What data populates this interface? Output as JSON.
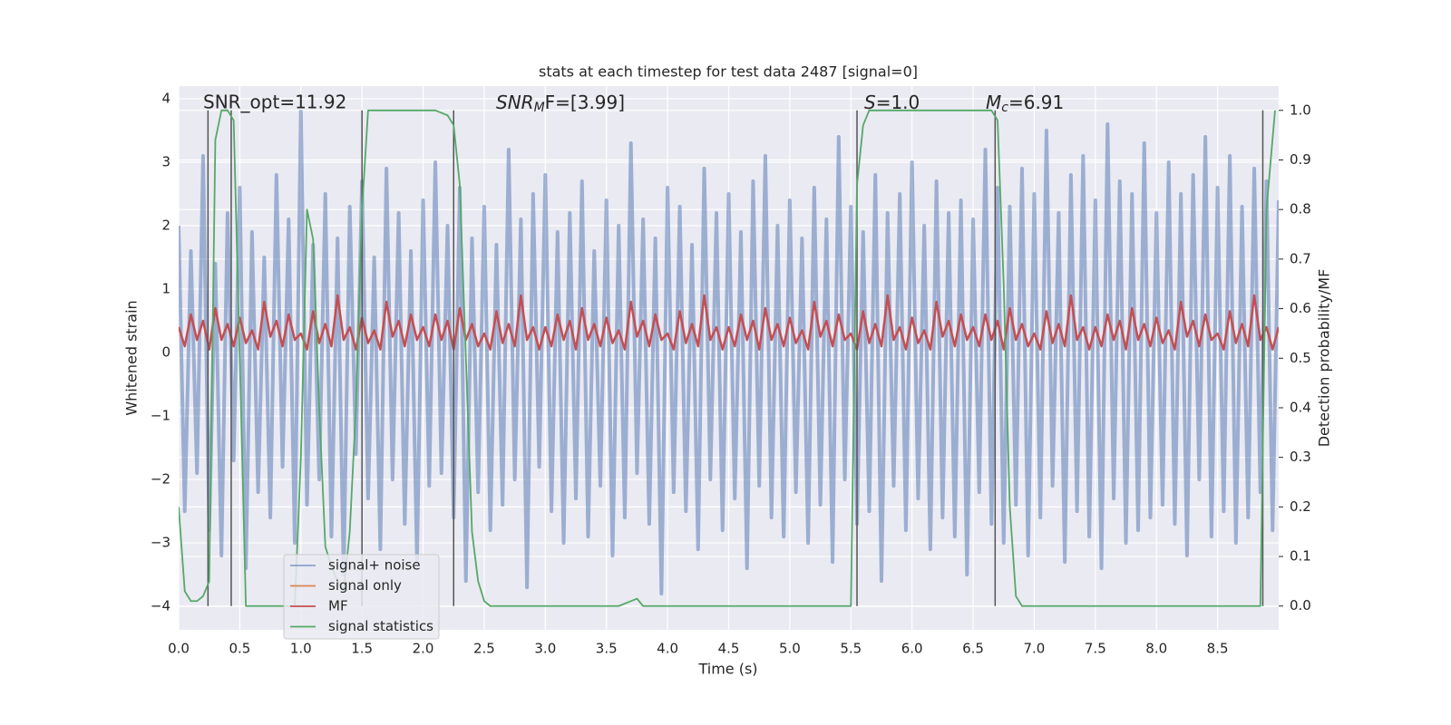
{
  "chart_data": {
    "type": "line",
    "title": "stats at each timestep for test data 2487 [signal=0]",
    "xlabel": "Time (s)",
    "ylabel": "Whitened strain",
    "y2label": "Detection probability/MF",
    "xlim": [
      0,
      9.0
    ],
    "xticks": [
      {
        "value": 0,
        "label": "0.0"
      },
      {
        "value": 0.5,
        "label": "0.5"
      },
      {
        "value": 1,
        "label": "1.0"
      },
      {
        "value": 1.5,
        "label": "1.5"
      },
      {
        "value": 2,
        "label": "2.0"
      },
      {
        "value": 2.5,
        "label": "2.5"
      },
      {
        "value": 3,
        "label": "3.0"
      },
      {
        "value": 3.5,
        "label": "3.5"
      },
      {
        "value": 4,
        "label": "4.0"
      },
      {
        "value": 4.5,
        "label": "4.5"
      },
      {
        "value": 5,
        "label": "5.0"
      },
      {
        "value": 5.5,
        "label": "5.5"
      },
      {
        "value": 6,
        "label": "6.0"
      },
      {
        "value": 6.5,
        "label": "6.5"
      },
      {
        "value": 7,
        "label": "7.0"
      },
      {
        "value": 7.5,
        "label": "7.5"
      },
      {
        "value": 8,
        "label": "8.0"
      },
      {
        "value": 8.5,
        "label": "8.5"
      }
    ],
    "ylim": [
      -4.37,
      4.2
    ],
    "yticks": [
      {
        "value": -4,
        "label": "−4"
      },
      {
        "value": -3,
        "label": "−3"
      },
      {
        "value": -2,
        "label": "−2"
      },
      {
        "value": -1,
        "label": "−1"
      },
      0,
      1,
      2,
      3,
      4
    ],
    "y2lim": [
      -0.048,
      1.049
    ],
    "y2ticks": [
      {
        "value": 0,
        "label": "0.0"
      },
      {
        "value": 0.1,
        "label": "0.1"
      },
      {
        "value": 0.2,
        "label": "0.2"
      },
      {
        "value": 0.3,
        "label": "0.3"
      },
      {
        "value": 0.4,
        "label": "0.4"
      },
      {
        "value": 0.5,
        "label": "0.5"
      },
      {
        "value": 0.6,
        "label": "0.6"
      },
      {
        "value": 0.7,
        "label": "0.7"
      },
      {
        "value": 0.8,
        "label": "0.8"
      },
      {
        "value": 0.9,
        "label": "0.9"
      },
      {
        "value": 1,
        "label": "1.0"
      }
    ],
    "grid": true,
    "annotations": [
      {
        "text": "SNR_opt=11.92"
      },
      {
        "base": "SNR",
        "sub": "M",
        "rest": "F=[3.99]"
      },
      {
        "base": "S",
        "rest": "=1.0"
      },
      {
        "base": "M",
        "sub": "c",
        "rest": "=6.91"
      }
    ],
    "vlines": [
      0.24,
      0.43,
      1.5,
      2.25,
      5.55,
      6.68,
      8.87
    ],
    "vlines_range": [
      0,
      1
    ],
    "vlines_color": "#555555",
    "series": [
      {
        "name": "signal+ noise",
        "color": "#4c72b0",
        "axis": "y",
        "x": [
          0,
          0.05,
          0.1,
          0.15,
          0.2,
          0.25,
          0.3,
          0.35,
          0.4,
          0.45,
          0.5,
          0.55,
          0.6,
          0.65,
          0.7,
          0.75,
          0.8,
          0.85,
          0.9,
          0.95,
          1,
          1.05,
          1.1,
          1.15,
          1.2,
          1.25,
          1.3,
          1.35,
          1.4,
          1.45,
          1.5,
          1.55,
          1.6,
          1.65,
          1.7,
          1.75,
          1.8,
          1.85,
          1.9,
          1.95,
          2,
          2.05,
          2.1,
          2.15,
          2.2,
          2.25,
          2.3,
          2.35,
          2.4,
          2.45,
          2.5,
          2.55,
          2.6,
          2.65,
          2.7,
          2.75,
          2.8,
          2.85,
          2.9,
          2.95,
          3,
          3.05,
          3.1,
          3.15,
          3.2,
          3.25,
          3.3,
          3.35,
          3.4,
          3.45,
          3.5,
          3.55,
          3.6,
          3.65,
          3.7,
          3.75,
          3.8,
          3.85,
          3.9,
          3.95,
          4,
          4.05,
          4.1,
          4.15,
          4.2,
          4.25,
          4.3,
          4.35,
          4.4,
          4.45,
          4.5,
          4.55,
          4.6,
          4.65,
          4.7,
          4.75,
          4.8,
          4.85,
          4.9,
          4.95,
          5,
          5.05,
          5.1,
          5.15,
          5.2,
          5.25,
          5.3,
          5.35,
          5.4,
          5.45,
          5.5,
          5.55,
          5.6,
          5.65,
          5.7,
          5.75,
          5.8,
          5.85,
          5.9,
          5.95,
          6,
          6.05,
          6.1,
          6.15,
          6.2,
          6.25,
          6.3,
          6.35,
          6.4,
          6.45,
          6.5,
          6.55,
          6.6,
          6.65,
          6.7,
          6.75,
          6.8,
          6.85,
          6.9,
          6.95,
          7,
          7.05,
          7.1,
          7.15,
          7.2,
          7.25,
          7.3,
          7.35,
          7.4,
          7.45,
          7.5,
          7.55,
          7.6,
          7.65,
          7.7,
          7.75,
          7.8,
          7.85,
          7.9,
          7.95,
          8,
          8.05,
          8.1,
          8.15,
          8.2,
          8.25,
          8.3,
          8.35,
          8.4,
          8.45,
          8.5,
          8.55,
          8.6,
          8.65,
          8.7,
          8.75,
          8.8,
          8.85,
          8.9,
          8.95,
          9
        ],
        "values": [
          2.0,
          -2.5,
          1.6,
          -1.9,
          3.1,
          -2.8,
          1.4,
          -3.2,
          2.2,
          -1.7,
          2.6,
          -3.4,
          1.9,
          -2.2,
          1.5,
          -2.6,
          2.8,
          -1.8,
          2.1,
          -3.0,
          3.8,
          -2.4,
          1.7,
          -2.0,
          2.5,
          -2.9,
          1.8,
          -3.5,
          2.3,
          -1.6,
          2.7,
          -2.3,
          1.5,
          -3.1,
          2.9,
          -2.0,
          2.2,
          -2.7,
          1.6,
          -3.3,
          2.4,
          -2.1,
          3.0,
          -1.9,
          2.0,
          -2.6,
          2.6,
          -3.6,
          1.8,
          -2.2,
          2.3,
          -2.8,
          1.7,
          -2.4,
          3.2,
          -2.0,
          2.1,
          -3.7,
          2.5,
          -1.8,
          2.8,
          -2.5,
          1.9,
          -3.0,
          2.2,
          -2.3,
          2.7,
          -2.9,
          1.6,
          -2.1,
          2.4,
          -3.2,
          2.0,
          -2.6,
          3.3,
          -1.9,
          2.1,
          -2.7,
          1.8,
          -3.8,
          2.6,
          -2.2,
          2.3,
          -2.5,
          1.7,
          -3.1,
          2.9,
          -2.0,
          2.2,
          -2.8,
          2.5,
          -2.3,
          1.9,
          -3.4,
          2.7,
          -2.1,
          3.1,
          -2.6,
          2.0,
          -2.9,
          2.4,
          -2.2,
          1.8,
          -3.0,
          2.6,
          -2.4,
          2.1,
          -3.3,
          3.4,
          -2.0,
          2.3,
          -2.7,
          1.9,
          -2.5,
          2.8,
          -3.6,
          2.2,
          -2.1,
          2.5,
          -2.8,
          3.0,
          -2.3,
          2.0,
          -3.1,
          2.7,
          -2.6,
          2.2,
          -2.9,
          2.4,
          -3.5,
          2.1,
          -2.2,
          3.2,
          -2.7,
          2.6,
          -3.0,
          2.3,
          -2.4,
          2.9,
          -3.2,
          2.5,
          -2.6,
          3.5,
          -2.1,
          2.2,
          -3.3,
          2.8,
          -2.5,
          3.1,
          -2.9,
          2.4,
          -3.4,
          3.6,
          -2.3,
          2.7,
          -3.0,
          2.5,
          -2.8,
          3.3,
          -2.6,
          2.2,
          -2.4,
          3.0,
          -2.7,
          2.5,
          -3.2,
          2.8,
          -2.0,
          3.4,
          -2.9,
          2.6,
          -2.5,
          3.1,
          -3.0,
          2.3,
          -2.6,
          2.9,
          -2.2,
          2.7,
          -2.8,
          2.4
        ]
      },
      {
        "name": "signal only",
        "color": "#dd8452",
        "axis": "y",
        "x": [],
        "values": []
      },
      {
        "name": "MF",
        "color": "#c44e52",
        "axis": "y",
        "x": [
          0,
          0.05,
          0.1,
          0.15,
          0.2,
          0.25,
          0.3,
          0.35,
          0.4,
          0.45,
          0.5,
          0.55,
          0.6,
          0.65,
          0.7,
          0.75,
          0.8,
          0.85,
          0.9,
          0.95,
          1,
          1.05,
          1.1,
          1.15,
          1.2,
          1.25,
          1.3,
          1.35,
          1.4,
          1.45,
          1.5,
          1.55,
          1.6,
          1.65,
          1.7,
          1.75,
          1.8,
          1.85,
          1.9,
          1.95,
          2,
          2.05,
          2.1,
          2.15,
          2.2,
          2.25,
          2.3,
          2.35,
          2.4,
          2.45,
          2.5,
          2.55,
          2.6,
          2.65,
          2.7,
          2.75,
          2.8,
          2.85,
          2.9,
          2.95,
          3,
          3.05,
          3.1,
          3.15,
          3.2,
          3.25,
          3.3,
          3.35,
          3.4,
          3.45,
          3.5,
          3.55,
          3.6,
          3.65,
          3.7,
          3.75,
          3.8,
          3.85,
          3.9,
          3.95,
          4,
          4.05,
          4.1,
          4.15,
          4.2,
          4.25,
          4.3,
          4.35,
          4.4,
          4.45,
          4.5,
          4.55,
          4.6,
          4.65,
          4.7,
          4.75,
          4.8,
          4.85,
          4.9,
          4.95,
          5,
          5.05,
          5.1,
          5.15,
          5.2,
          5.25,
          5.3,
          5.35,
          5.4,
          5.45,
          5.5,
          5.55,
          5.6,
          5.65,
          5.7,
          5.75,
          5.8,
          5.85,
          5.9,
          5.95,
          6,
          6.05,
          6.1,
          6.15,
          6.2,
          6.25,
          6.3,
          6.35,
          6.4,
          6.45,
          6.5,
          6.55,
          6.6,
          6.65,
          6.7,
          6.75,
          6.8,
          6.85,
          6.9,
          6.95,
          7,
          7.05,
          7.1,
          7.15,
          7.2,
          7.25,
          7.3,
          7.35,
          7.4,
          7.45,
          7.5,
          7.55,
          7.6,
          7.65,
          7.7,
          7.75,
          7.8,
          7.85,
          7.9,
          7.95,
          8,
          8.05,
          8.1,
          8.15,
          8.2,
          8.25,
          8.3,
          8.35,
          8.4,
          8.45,
          8.5,
          8.55,
          8.6,
          8.65,
          8.7,
          8.75,
          8.8,
          8.85,
          8.9,
          8.95,
          9
        ],
        "values": [
          0.4,
          0.1,
          0.6,
          0.2,
          0.5,
          0.05,
          0.7,
          0.2,
          0.45,
          0.1,
          0.55,
          0.15,
          0.35,
          0.05,
          0.8,
          0.25,
          0.5,
          0.1,
          0.6,
          0.2,
          0.3,
          0.05,
          0.65,
          0.15,
          0.45,
          0.1,
          0.9,
          0.2,
          0.4,
          0.05,
          0.55,
          0.15,
          0.35,
          0.05,
          0.8,
          0.25,
          0.5,
          0.1,
          0.6,
          0.2,
          0.4,
          0.1,
          0.6,
          0.2,
          0.5,
          0.05,
          0.7,
          0.2,
          0.45,
          0.1,
          0.3,
          0.05,
          0.65,
          0.15,
          0.45,
          0.1,
          0.9,
          0.2,
          0.4,
          0.05,
          0.4,
          0.1,
          0.6,
          0.2,
          0.5,
          0.05,
          0.7,
          0.2,
          0.45,
          0.1,
          0.55,
          0.15,
          0.35,
          0.05,
          0.8,
          0.25,
          0.5,
          0.1,
          0.6,
          0.2,
          0.3,
          0.05,
          0.65,
          0.15,
          0.45,
          0.1,
          0.9,
          0.2,
          0.4,
          0.05,
          0.4,
          0.1,
          0.6,
          0.2,
          0.5,
          0.05,
          0.7,
          0.2,
          0.45,
          0.1,
          0.55,
          0.15,
          0.35,
          0.05,
          0.8,
          0.25,
          0.5,
          0.1,
          0.6,
          0.2,
          0.3,
          0.05,
          0.65,
          0.15,
          0.45,
          0.1,
          0.9,
          0.2,
          0.4,
          0.05,
          0.55,
          0.15,
          0.35,
          0.05,
          0.8,
          0.25,
          0.5,
          0.1,
          0.6,
          0.2,
          0.4,
          0.1,
          0.6,
          0.2,
          0.5,
          0.05,
          0.7,
          0.2,
          0.45,
          0.1,
          0.3,
          0.05,
          0.65,
          0.15,
          0.45,
          0.1,
          0.9,
          0.2,
          0.4,
          0.05,
          0.4,
          0.1,
          0.6,
          0.2,
          0.5,
          0.05,
          0.7,
          0.2,
          0.45,
          0.1,
          0.55,
          0.15,
          0.35,
          0.05,
          0.8,
          0.25,
          0.5,
          0.1,
          0.6,
          0.2,
          0.3,
          0.05,
          0.65,
          0.15,
          0.45,
          0.1,
          0.9,
          0.2,
          0.4,
          0.05,
          0.4
        ]
      },
      {
        "name": "signal statistics",
        "color": "#55a868",
        "axis": "y2",
        "x": [
          0,
          0.05,
          0.1,
          0.15,
          0.2,
          0.25,
          0.3,
          0.35,
          0.4,
          0.45,
          0.5,
          0.55,
          0.95,
          1.0,
          1.05,
          1.1,
          1.15,
          1.2,
          1.25,
          1.3,
          1.35,
          1.4,
          1.45,
          1.5,
          1.55,
          1.6,
          2.1,
          2.2,
          2.25,
          2.3,
          2.35,
          2.4,
          2.45,
          2.5,
          2.55,
          3.6,
          3.7,
          3.75,
          3.8,
          5.5,
          5.55,
          5.6,
          5.65,
          6.65,
          6.7,
          6.75,
          6.8,
          6.85,
          6.9,
          8.85,
          8.9,
          8.97
        ],
        "values": [
          0.2,
          0.03,
          0.01,
          0.01,
          0.02,
          0.05,
          0.94,
          1.0,
          1.0,
          0.98,
          0.5,
          0.0,
          0.0,
          0.3,
          0.8,
          0.74,
          0.4,
          0.12,
          0.08,
          0.05,
          0.03,
          0.15,
          0.4,
          0.8,
          1.0,
          1.0,
          1.0,
          0.99,
          0.97,
          0.85,
          0.5,
          0.15,
          0.05,
          0.01,
          0.0,
          0.0,
          0.01,
          0.015,
          0.0,
          0.0,
          0.85,
          0.97,
          1.0,
          1.0,
          0.98,
          0.65,
          0.2,
          0.02,
          0.0,
          0.0,
          0.8,
          1.0
        ]
      }
    ]
  }
}
